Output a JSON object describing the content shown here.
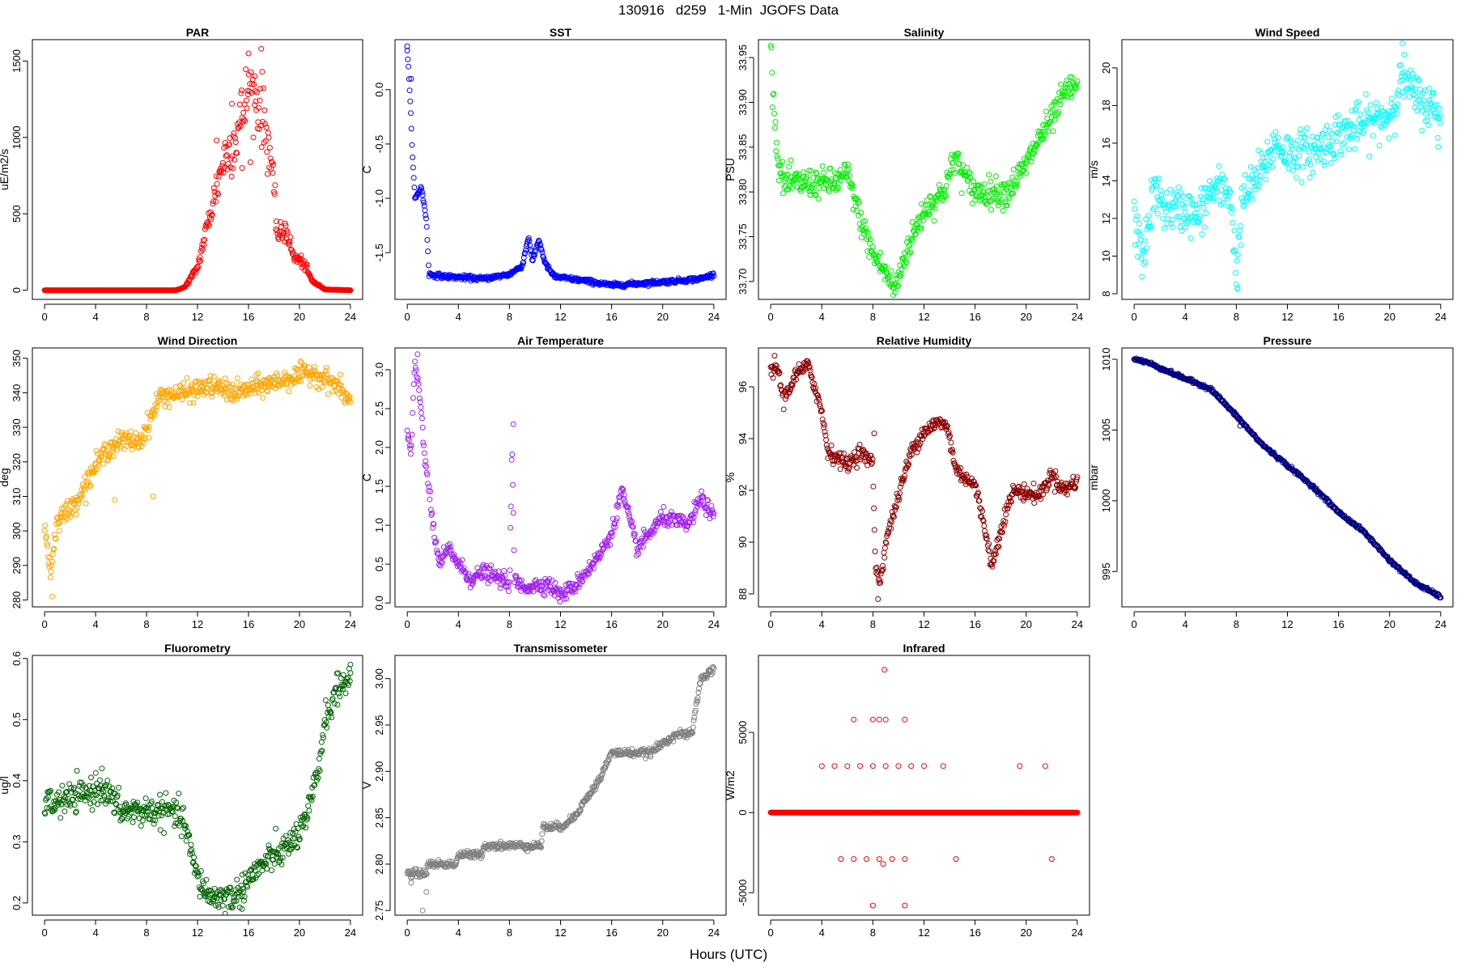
{
  "page": {
    "title": "130916   d259   1-Min  JGOFS Data",
    "x_caption": "Hours (UTC)"
  },
  "chart_data": [
    {
      "type": "scatter",
      "title": "PAR",
      "ylabel": "uE/m2/s",
      "color": "#ff0000",
      "xlim": [
        0,
        24
      ],
      "xticks": [
        0,
        4,
        8,
        12,
        16,
        20,
        24
      ],
      "ylim": [
        -60,
        1640
      ],
      "yticks": [
        0,
        500,
        1000,
        1500
      ],
      "profile": [
        [
          0,
          0
        ],
        [
          10.3,
          0
        ],
        [
          11,
          20
        ],
        [
          12,
          150
        ],
        [
          13,
          500
        ],
        [
          14,
          850
        ],
        [
          15,
          1000
        ],
        [
          16,
          1300
        ],
        [
          17,
          1200
        ],
        [
          17.7,
          900
        ],
        [
          18.3,
          350
        ],
        [
          19,
          400
        ],
        [
          19.5,
          220
        ],
        [
          20.3,
          180
        ],
        [
          21,
          60
        ],
        [
          22,
          5
        ],
        [
          24,
          0
        ]
      ],
      "noise": 0.1,
      "spikes": [
        [
          16,
          1550
        ],
        [
          17,
          1580
        ],
        [
          14.7,
          1220
        ],
        [
          16.5,
          1400
        ],
        [
          13.5,
          980
        ],
        [
          15.5,
          800
        ]
      ]
    },
    {
      "type": "scatter",
      "title": "SST",
      "ylabel": "C",
      "color": "#0000ff",
      "xlim": [
        0,
        24
      ],
      "xticks": [
        0,
        4,
        8,
        12,
        16,
        20,
        24
      ],
      "ylim": [
        -1.93,
        0.46
      ],
      "yticks": [
        -1.5,
        -1.0,
        -0.5,
        0.0
      ],
      "profile": [
        [
          0,
          0.35
        ],
        [
          0.2,
          0.0
        ],
        [
          0.4,
          -0.6
        ],
        [
          0.6,
          -1.0
        ],
        [
          1.1,
          -0.9
        ],
        [
          1.5,
          -1.2
        ],
        [
          1.7,
          -1.7
        ],
        [
          3,
          -1.72
        ],
        [
          6,
          -1.74
        ],
        [
          8,
          -1.7
        ],
        [
          9,
          -1.62
        ],
        [
          9.5,
          -1.35
        ],
        [
          9.8,
          -1.58
        ],
        [
          10.3,
          -1.38
        ],
        [
          10.8,
          -1.6
        ],
        [
          11.5,
          -1.72
        ],
        [
          14,
          -1.76
        ],
        [
          16,
          -1.8
        ],
        [
          20,
          -1.77
        ],
        [
          23,
          -1.74
        ],
        [
          24,
          -1.7
        ]
      ],
      "noise": 0.01,
      "spikes": [
        [
          0,
          0.4
        ],
        [
          0.3,
          0.1
        ]
      ]
    },
    {
      "type": "scatter",
      "title": "Salinity",
      "ylabel": "PSU",
      "color": "#00ee00",
      "xlim": [
        0,
        24
      ],
      "xticks": [
        0,
        4,
        8,
        12,
        16,
        20,
        24
      ],
      "ylim": [
        33.68,
        33.97
      ],
      "yticks": [
        33.7,
        33.75,
        33.8,
        33.85,
        33.9,
        33.95
      ],
      "profile": [
        [
          0,
          33.96
        ],
        [
          0.5,
          33.84
        ],
        [
          1,
          33.81
        ],
        [
          5,
          33.81
        ],
        [
          6,
          33.82
        ],
        [
          7,
          33.77
        ],
        [
          8,
          33.73
        ],
        [
          9,
          33.71
        ],
        [
          9.7,
          33.69
        ],
        [
          10.5,
          33.73
        ],
        [
          12,
          33.78
        ],
        [
          13.5,
          33.8
        ],
        [
          14.5,
          33.84
        ],
        [
          15,
          33.82
        ],
        [
          16,
          33.8
        ],
        [
          18.5,
          33.8
        ],
        [
          20,
          33.83
        ],
        [
          21,
          33.86
        ],
        [
          22,
          33.88
        ],
        [
          23,
          33.91
        ],
        [
          24,
          33.92
        ]
      ],
      "noise": 0.008,
      "spikes": []
    },
    {
      "type": "scatter",
      "title": "Wind Speed",
      "ylabel": "m/s",
      "color": "#00ffff",
      "xlim": [
        0,
        24
      ],
      "xticks": [
        0,
        4,
        8,
        12,
        16,
        20,
        24
      ],
      "ylim": [
        7.7,
        21.5
      ],
      "yticks": [
        8,
        10,
        12,
        14,
        16,
        18,
        20
      ],
      "profile": [
        [
          0,
          12
        ],
        [
          0.6,
          10
        ],
        [
          1,
          11
        ],
        [
          1.5,
          13.5
        ],
        [
          2.5,
          12.5
        ],
        [
          4,
          12.5
        ],
        [
          5,
          12
        ],
        [
          6,
          13.5
        ],
        [
          7.5,
          13.5
        ],
        [
          8,
          9
        ],
        [
          8.5,
          13
        ],
        [
          10,
          14.5
        ],
        [
          11,
          16
        ],
        [
          12,
          15.5
        ],
        [
          14,
          15.5
        ],
        [
          16,
          16.5
        ],
        [
          18,
          17
        ],
        [
          20,
          17.5
        ],
        [
          21,
          19.5
        ],
        [
          22,
          18.5
        ],
        [
          24,
          17.5
        ]
      ],
      "noise": 0.6,
      "spikes": [
        [
          8.1,
          8.3
        ],
        [
          21,
          21.3
        ],
        [
          23.8,
          15.8
        ]
      ]
    },
    {
      "type": "scatter",
      "title": "Wind Direction",
      "ylabel": "deg",
      "color": "#ffa500",
      "xlim": [
        0,
        24
      ],
      "xticks": [
        0,
        4,
        8,
        12,
        16,
        20,
        24
      ],
      "ylim": [
        278,
        353
      ],
      "yticks": [
        280,
        290,
        300,
        310,
        320,
        330,
        340,
        350
      ],
      "profile": [
        [
          0,
          301
        ],
        [
          0.5,
          288
        ],
        [
          1,
          304
        ],
        [
          2,
          306
        ],
        [
          3,
          312
        ],
        [
          4,
          319
        ],
        [
          5,
          324
        ],
        [
          6,
          326
        ],
        [
          7.5,
          326
        ],
        [
          8.5,
          334
        ],
        [
          9,
          339
        ],
        [
          11,
          340
        ],
        [
          13,
          342
        ],
        [
          15,
          340
        ],
        [
          17,
          342
        ],
        [
          19,
          344
        ],
        [
          21,
          346
        ],
        [
          23,
          342
        ],
        [
          24,
          337
        ]
      ],
      "noise": 1.5,
      "spikes": [
        [
          0.6,
          281
        ],
        [
          5.5,
          309
        ],
        [
          8.5,
          310
        ]
      ]
    },
    {
      "type": "scatter",
      "title": "Air Temperature",
      "ylabel": "C",
      "color": "#a020f0",
      "xlim": [
        0,
        24
      ],
      "xticks": [
        0,
        4,
        8,
        12,
        16,
        20,
        24
      ],
      "ylim": [
        -0.05,
        3.28
      ],
      "yticks": [
        0.0,
        0.5,
        1.0,
        1.5,
        2.0,
        2.5,
        3.0
      ],
      "profile": [
        [
          0,
          2.2
        ],
        [
          0.3,
          1.9
        ],
        [
          0.6,
          3.1
        ],
        [
          1.1,
          2.5
        ],
        [
          1.3,
          2.0
        ],
        [
          2,
          1.0
        ],
        [
          2.5,
          0.5
        ],
        [
          3.3,
          0.7
        ],
        [
          4,
          0.5
        ],
        [
          5,
          0.3
        ],
        [
          6,
          0.4
        ],
        [
          8,
          0.25
        ],
        [
          8.2,
          2.0
        ],
        [
          8.4,
          0.3
        ],
        [
          9,
          0.2
        ],
        [
          11,
          0.25
        ],
        [
          12,
          0.1
        ],
        [
          13,
          0.2
        ],
        [
          15,
          0.6
        ],
        [
          16,
          0.9
        ],
        [
          16.8,
          1.45
        ],
        [
          17.5,
          1.0
        ],
        [
          18,
          0.7
        ],
        [
          20,
          1.1
        ],
        [
          22,
          1.0
        ],
        [
          23,
          1.35
        ],
        [
          24,
          1.1
        ]
      ],
      "noise": 0.05,
      "spikes": [
        [
          0.8,
          3.2
        ],
        [
          8.3,
          2.3
        ]
      ]
    },
    {
      "type": "scatter",
      "title": "Relative Humidity",
      "ylabel": "%",
      "color": "#8b0000",
      "xlim": [
        0,
        24
      ],
      "xticks": [
        0,
        4,
        8,
        12,
        16,
        20,
        24
      ],
      "ylim": [
        87.5,
        97.5
      ],
      "yticks": [
        88,
        90,
        92,
        94,
        96
      ],
      "profile": [
        [
          0,
          96.5
        ],
        [
          0.5,
          96.8
        ],
        [
          1,
          95.5
        ],
        [
          2,
          96.5
        ],
        [
          3,
          96.8
        ],
        [
          4,
          95
        ],
        [
          4.5,
          93.5
        ],
        [
          6,
          93
        ],
        [
          7,
          93.5
        ],
        [
          8,
          93
        ],
        [
          8.2,
          89
        ],
        [
          8.6,
          88.5
        ],
        [
          9,
          90
        ],
        [
          10,
          91.8
        ],
        [
          11,
          93.5
        ],
        [
          12,
          94.3
        ],
        [
          13,
          94.6
        ],
        [
          13.8,
          94.5
        ],
        [
          14.5,
          92.8
        ],
        [
          16,
          92.2
        ],
        [
          17,
          90
        ],
        [
          17.3,
          89
        ],
        [
          18,
          90.5
        ],
        [
          19,
          92
        ],
        [
          21,
          91.8
        ],
        [
          22,
          92.6
        ],
        [
          23,
          92
        ],
        [
          24,
          92.4
        ]
      ],
      "noise": 0.15,
      "spikes": [
        [
          0.3,
          97.2
        ],
        [
          8.4,
          87.8
        ],
        [
          8.1,
          94.2
        ]
      ]
    },
    {
      "type": "scatter",
      "title": "Pressure",
      "ylabel": "mbar",
      "color": "#000080",
      "xlim": [
        0,
        24
      ],
      "xticks": [
        0,
        4,
        8,
        12,
        16,
        20,
        24
      ],
      "ylim": [
        992.5,
        1010.8
      ],
      "yticks": [
        995,
        1000,
        1005,
        1010
      ],
      "profile": [
        [
          0,
          1010
        ],
        [
          1,
          1009.8
        ],
        [
          3,
          1009
        ],
        [
          6,
          1007.9
        ],
        [
          8,
          1006
        ],
        [
          10,
          1004
        ],
        [
          12,
          1002.5
        ],
        [
          14,
          1001
        ],
        [
          16,
          999.2
        ],
        [
          18,
          997.8
        ],
        [
          20,
          995.8
        ],
        [
          22,
          994.2
        ],
        [
          24,
          993.2
        ]
      ],
      "noise": 0.06,
      "spikes": [
        [
          8.3,
          1005.3
        ]
      ]
    },
    {
      "type": "scatter",
      "title": "Fluorometry",
      "ylabel": "ug/l",
      "color": "#006400",
      "xlim": [
        0,
        24
      ],
      "xticks": [
        0,
        4,
        8,
        12,
        16,
        20,
        24
      ],
      "ylim": [
        0.18,
        0.605
      ],
      "yticks": [
        0.2,
        0.3,
        0.4,
        0.5,
        0.6
      ],
      "profile": [
        [
          0,
          0.36
        ],
        [
          2,
          0.37
        ],
        [
          3.5,
          0.38
        ],
        [
          4.5,
          0.39
        ],
        [
          6,
          0.35
        ],
        [
          8,
          0.35
        ],
        [
          10,
          0.35
        ],
        [
          11,
          0.33
        ],
        [
          11.5,
          0.28
        ],
        [
          12,
          0.24
        ],
        [
          13,
          0.21
        ],
        [
          15,
          0.21
        ],
        [
          16,
          0.24
        ],
        [
          17.5,
          0.27
        ],
        [
          19,
          0.29
        ],
        [
          20.5,
          0.33
        ],
        [
          21.5,
          0.42
        ],
        [
          22,
          0.5
        ],
        [
          23,
          0.55
        ],
        [
          24,
          0.57
        ]
      ],
      "noise": 0.012,
      "spikes": [
        [
          24,
          0.59
        ],
        [
          4.5,
          0.42
        ],
        [
          15.5,
          0.19
        ]
      ]
    },
    {
      "type": "scatter",
      "title": "Transmissometer",
      "ylabel": "V",
      "color": "#808080",
      "xlim": [
        0,
        24
      ],
      "xticks": [
        0,
        4,
        8,
        12,
        16,
        20,
        24
      ],
      "ylim": [
        2.745,
        3.025
      ],
      "yticks": [
        2.75,
        2.8,
        2.85,
        2.9,
        2.95,
        3.0
      ],
      "profile": [
        [
          0,
          2.79
        ],
        [
          1.5,
          2.79
        ],
        [
          1.6,
          2.8
        ],
        [
          3.8,
          2.8
        ],
        [
          4,
          2.81
        ],
        [
          5.8,
          2.81
        ],
        [
          6,
          2.82
        ],
        [
          10.5,
          2.82
        ],
        [
          10.6,
          2.84
        ],
        [
          12,
          2.84
        ],
        [
          13,
          2.85
        ],
        [
          14,
          2.87
        ],
        [
          15,
          2.89
        ],
        [
          16,
          2.92
        ],
        [
          19,
          2.92
        ],
        [
          20,
          2.93
        ],
        [
          21,
          2.94
        ],
        [
          22.3,
          2.94
        ],
        [
          22.6,
          2.97
        ],
        [
          23,
          3.0
        ],
        [
          24,
          3.01
        ]
      ],
      "noise": 0.002,
      "spikes": [
        [
          0.3,
          2.78
        ],
        [
          1.2,
          2.75
        ],
        [
          1.5,
          2.77
        ]
      ]
    },
    {
      "type": "scatter",
      "title": "Infrared",
      "ylabel": "W/m2",
      "color": "#ff0000",
      "xlim": [
        0,
        24
      ],
      "xticks": [
        0,
        4,
        8,
        12,
        16,
        20,
        24
      ],
      "ylim": [
        -6400,
        9800
      ],
      "yticks": [
        -5000,
        0,
        5000
      ],
      "profile": [
        [
          0,
          0
        ],
        [
          24,
          0
        ]
      ],
      "noise": 0,
      "spikes": [
        [
          8.9,
          8900
        ],
        [
          6.5,
          5800
        ],
        [
          8,
          5800
        ],
        [
          8.5,
          5800
        ],
        [
          9,
          5800
        ],
        [
          10.5,
          5800
        ],
        [
          4,
          2900
        ],
        [
          5,
          2900
        ],
        [
          6,
          2900
        ],
        [
          7,
          2900
        ],
        [
          8,
          2900
        ],
        [
          9,
          2900
        ],
        [
          10,
          2900
        ],
        [
          11,
          2900
        ],
        [
          12,
          2900
        ],
        [
          13.5,
          2900
        ],
        [
          19.5,
          2900
        ],
        [
          21.5,
          2900
        ],
        [
          5.5,
          -2900
        ],
        [
          6.5,
          -2900
        ],
        [
          7.5,
          -2900
        ],
        [
          8.5,
          -2900
        ],
        [
          9.5,
          -2900
        ],
        [
          10.5,
          -2900
        ],
        [
          14.5,
          -2900
        ],
        [
          22,
          -2900
        ],
        [
          8,
          -5800
        ],
        [
          10.5,
          -5800
        ],
        [
          8.8,
          -3200
        ]
      ]
    }
  ]
}
